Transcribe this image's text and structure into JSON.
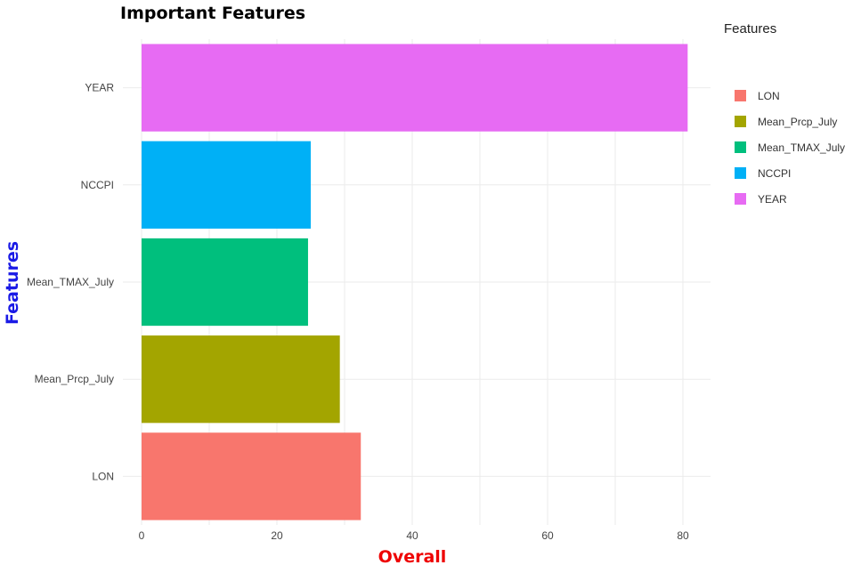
{
  "chart_data": {
    "type": "bar",
    "orientation": "horizontal",
    "title": "Important Features",
    "xlabel": "Overall",
    "ylabel": "Features",
    "xlabel_color": "#ee0000",
    "ylabel_color": "#1a1ae6",
    "categories": [
      "LON",
      "Mean_Prcp_July",
      "Mean_TMAX_July",
      "NCCPI",
      "YEAR"
    ],
    "values": [
      32.4,
      29.3,
      24.6,
      25.0,
      80.7
    ],
    "colors": [
      "#F8766D",
      "#A3A500",
      "#00BF7D",
      "#00B0F6",
      "#E76BF3"
    ],
    "xlim": [
      0,
      84.7
    ],
    "x_ticks": [
      0,
      20,
      40,
      60,
      80
    ],
    "grid": true,
    "legend": {
      "title": "Features",
      "position": "right",
      "items": [
        "LON",
        "Mean_Prcp_July",
        "Mean_TMAX_July",
        "NCCPI",
        "YEAR"
      ]
    }
  }
}
